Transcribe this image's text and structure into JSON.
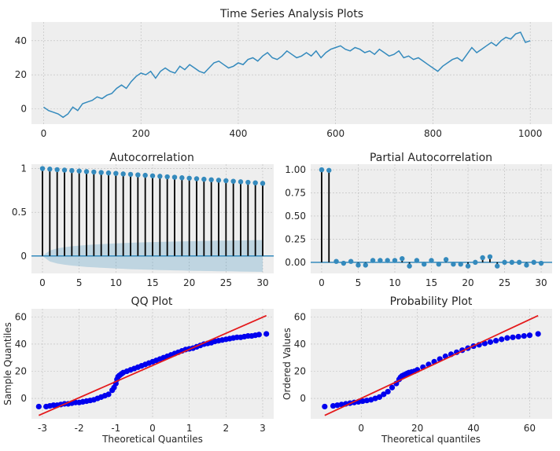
{
  "chart_data": [
    {
      "type": "line",
      "title": "Time Series Analysis Plots",
      "xlabel": "",
      "ylabel": "",
      "xlim": [
        -25,
        1045
      ],
      "ylim": [
        -9,
        51
      ],
      "xticks": [
        0,
        200,
        400,
        600,
        800,
        1000
      ],
      "yticks": [
        0,
        20,
        40
      ],
      "color": "#348ABD",
      "grid": true,
      "x": [
        0,
        10,
        20,
        30,
        40,
        50,
        60,
        70,
        80,
        90,
        100,
        110,
        120,
        130,
        140,
        150,
        160,
        170,
        180,
        190,
        200,
        210,
        220,
        230,
        240,
        250,
        260,
        270,
        280,
        290,
        300,
        310,
        320,
        330,
        340,
        350,
        360,
        370,
        380,
        390,
        400,
        410,
        420,
        430,
        440,
        450,
        460,
        470,
        480,
        490,
        500,
        510,
        520,
        530,
        540,
        550,
        560,
        570,
        580,
        590,
        600,
        610,
        620,
        630,
        640,
        650,
        660,
        670,
        680,
        690,
        700,
        710,
        720,
        730,
        740,
        750,
        760,
        770,
        780,
        790,
        800,
        810,
        820,
        830,
        840,
        850,
        860,
        870,
        880,
        890,
        900,
        910,
        920,
        930,
        940,
        950,
        960,
        970,
        980,
        990,
        1000
      ],
      "y": [
        1,
        -1,
        -2,
        -3,
        -5,
        -3,
        1,
        -1,
        3,
        4,
        5,
        7,
        6,
        8,
        9,
        12,
        14,
        12,
        16,
        19,
        21,
        20,
        22,
        18,
        22,
        24,
        22,
        21,
        25,
        23,
        26,
        24,
        22,
        21,
        24,
        27,
        28,
        26,
        24,
        25,
        27,
        26,
        29,
        30,
        28,
        31,
        33,
        30,
        29,
        31,
        34,
        32,
        30,
        31,
        33,
        31,
        34,
        30,
        33,
        35,
        36,
        37,
        35,
        34,
        36,
        35,
        33,
        34,
        32,
        35,
        33,
        31,
        32,
        34,
        30,
        31,
        29,
        30,
        28,
        26,
        24,
        22,
        25,
        27,
        29,
        30,
        28,
        32,
        36,
        33,
        35,
        37,
        39,
        37,
        40,
        42,
        41,
        44,
        45,
        39,
        40
      ]
    },
    {
      "type": "scatter",
      "title": "Autocorrelation",
      "xlabel": "",
      "ylabel": "",
      "xlim": [
        -1.5,
        31.5
      ],
      "ylim": [
        -0.2,
        1.05
      ],
      "xticks": [
        0,
        5,
        10,
        15,
        20,
        25,
        30
      ],
      "yticks": [
        0.0,
        0.5,
        1.0
      ],
      "color": "#348ABD",
      "grid": true,
      "x": [
        0,
        1,
        2,
        3,
        4,
        5,
        6,
        7,
        8,
        9,
        10,
        11,
        12,
        13,
        14,
        15,
        16,
        17,
        18,
        19,
        20,
        21,
        22,
        23,
        24,
        25,
        26,
        27,
        28,
        29,
        30
      ],
      "y": [
        1.0,
        0.994,
        0.988,
        0.983,
        0.977,
        0.972,
        0.966,
        0.961,
        0.955,
        0.95,
        0.945,
        0.939,
        0.934,
        0.928,
        0.923,
        0.917,
        0.912,
        0.906,
        0.901,
        0.895,
        0.89,
        0.884,
        0.878,
        0.872,
        0.867,
        0.861,
        0.855,
        0.849,
        0.843,
        0.837,
        0.831
      ],
      "confidence_band": [
        0.0,
        0.062,
        0.087,
        0.1,
        0.11,
        0.118,
        0.125,
        0.13,
        0.135,
        0.14,
        0.144,
        0.147,
        0.151,
        0.154,
        0.156,
        0.159,
        0.161,
        0.163,
        0.165,
        0.167,
        0.169,
        0.17,
        0.172,
        0.173,
        0.175,
        0.176,
        0.177,
        0.178,
        0.179,
        0.181,
        0.182
      ]
    },
    {
      "type": "scatter",
      "title": "Partial Autocorrelation",
      "xlabel": "",
      "ylabel": "",
      "xlim": [
        -1.5,
        31.5
      ],
      "ylim": [
        -0.12,
        1.06
      ],
      "xticks": [
        0,
        5,
        10,
        15,
        20,
        25,
        30
      ],
      "yticks": [
        0.0,
        0.25,
        0.5,
        0.75,
        1.0
      ],
      "color": "#348ABD",
      "grid": true,
      "x": [
        0,
        1,
        2,
        3,
        4,
        5,
        6,
        7,
        8,
        9,
        10,
        11,
        12,
        13,
        14,
        15,
        16,
        17,
        18,
        19,
        20,
        21,
        22,
        23,
        24,
        25,
        26,
        27,
        28,
        29,
        30
      ],
      "y": [
        1.0,
        0.994,
        0.01,
        -0.01,
        0.01,
        -0.03,
        -0.03,
        0.02,
        0.02,
        0.02,
        0.02,
        0.04,
        -0.04,
        0.02,
        -0.02,
        0.02,
        -0.02,
        0.03,
        -0.02,
        -0.02,
        -0.04,
        0.0,
        0.05,
        0.06,
        -0.04,
        0.0,
        0.0,
        0.0,
        -0.03,
        0.0,
        -0.01
      ]
    },
    {
      "type": "scatter",
      "title": "QQ Plot",
      "xlabel": "Theoretical Quantiles",
      "ylabel": "Sample Quantiles",
      "xlim": [
        -3.3,
        3.3
      ],
      "ylim": [
        -15,
        66
      ],
      "xticks": [
        -3,
        -2,
        -1,
        0,
        1,
        2,
        3
      ],
      "yticks": [
        0,
        20,
        40,
        60
      ],
      "color": "#0000ee",
      "line_color": "#e41a1c",
      "grid": true,
      "ref_line": [
        [
          -3.1,
          -12.5
        ],
        [
          3.1,
          61
        ]
      ],
      "x": [
        -3.1,
        -2.9,
        -2.8,
        -2.7,
        -2.6,
        -2.5,
        -2.4,
        -2.3,
        -2.2,
        -2.1,
        -2.0,
        -1.9,
        -1.8,
        -1.7,
        -1.6,
        -1.5,
        -1.4,
        -1.3,
        -1.2,
        -1.1,
        -1.05,
        -1.0,
        -0.97,
        -0.94,
        -0.9,
        -0.85,
        -0.8,
        -0.7,
        -0.6,
        -0.5,
        -0.4,
        -0.3,
        -0.2,
        -0.1,
        0.0,
        0.1,
        0.2,
        0.3,
        0.4,
        0.5,
        0.6,
        0.7,
        0.8,
        0.9,
        1.0,
        1.1,
        1.2,
        1.3,
        1.4,
        1.5,
        1.6,
        1.7,
        1.8,
        1.9,
        2.0,
        2.1,
        2.2,
        2.3,
        2.4,
        2.5,
        2.6,
        2.7,
        2.8,
        2.9,
        3.1
      ],
      "y": [
        -6,
        -6,
        -5.5,
        -5,
        -5,
        -4.5,
        -4,
        -4,
        -3.5,
        -3,
        -3,
        -2.5,
        -2,
        -1.5,
        -1,
        0,
        1,
        2,
        3,
        6,
        8,
        11,
        14,
        16,
        17,
        18,
        19,
        20,
        21,
        22,
        23,
        24,
        25,
        26,
        27,
        28,
        29,
        30,
        31,
        32,
        33,
        34,
        35,
        36,
        36.5,
        37,
        38,
        39,
        40,
        40.5,
        41,
        42,
        42.5,
        43,
        43.5,
        44,
        44.5,
        45,
        45,
        45.5,
        46,
        46,
        46.5,
        47,
        47.5
      ]
    },
    {
      "type": "scatter",
      "title": "Probability Plot",
      "xlabel": "Theoretical quantiles",
      "ylabel": "Ordered Values",
      "xlim": [
        -18,
        68
      ],
      "ylim": [
        -15,
        66
      ],
      "xticks": [
        0,
        20,
        40,
        60
      ],
      "yticks": [
        0,
        20,
        40,
        60
      ],
      "color": "#0000ee",
      "line_color": "#e41a1c",
      "grid": true,
      "ref_line": [
        [
          -13,
          -12.5
        ],
        [
          63,
          61
        ]
      ],
      "x": [
        -13,
        -10,
        -8.5,
        -7,
        -5.5,
        -4,
        -2.5,
        -1,
        0.5,
        2,
        3.5,
        5,
        6.5,
        8,
        9.5,
        11,
        12.5,
        13.5,
        14,
        14.5,
        15,
        15.5,
        16,
        16.5,
        17,
        18,
        19,
        20,
        22,
        24,
        26,
        28,
        30,
        32,
        34,
        36,
        38,
        40,
        42,
        44,
        46,
        48,
        50,
        52,
        54,
        56,
        58,
        60,
        63
      ],
      "y": [
        -6,
        -5.5,
        -5,
        -4.5,
        -4,
        -3.5,
        -3,
        -2.5,
        -2,
        -1.5,
        -1,
        0,
        1,
        3,
        5,
        8,
        11,
        14,
        15.5,
        16.5,
        17,
        17.5,
        18,
        18.5,
        19,
        19.5,
        20,
        21,
        23,
        25,
        27,
        29,
        31,
        32.5,
        34,
        35.5,
        37,
        38.5,
        39.5,
        40.5,
        41.5,
        42.5,
        43.5,
        44.5,
        45,
        45.5,
        46,
        46.5,
        47.5
      ]
    }
  ]
}
